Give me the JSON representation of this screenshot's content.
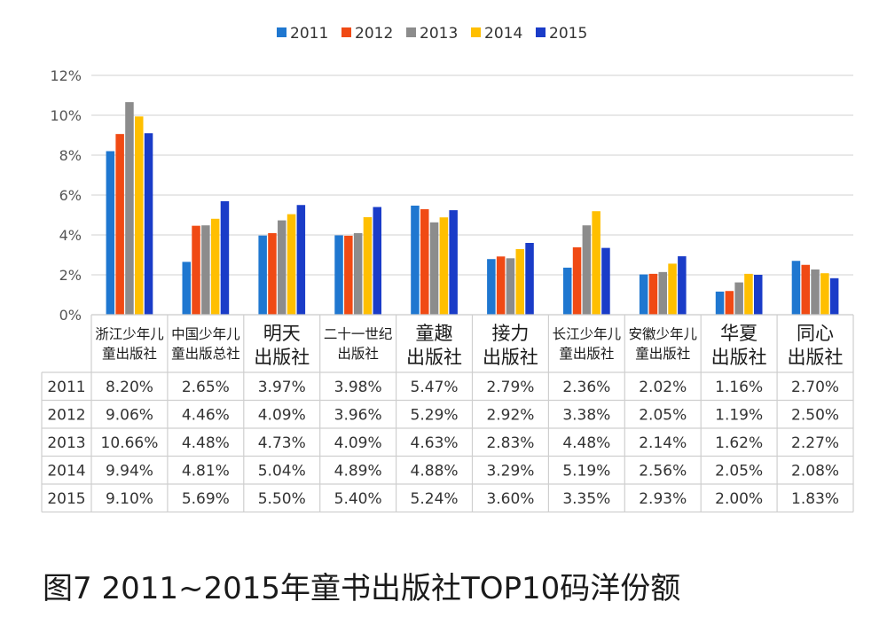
{
  "caption": "图7  2011~2015年童书出版社TOP10码洋份额",
  "colors": {
    "2011": "#1f77d0",
    "2012": "#f04a14",
    "2013": "#8c8c8c",
    "2014": "#ffbf00",
    "2015": "#1a3cc8"
  },
  "chart_data": {
    "type": "bar",
    "categories": [
      [
        "浙江少年儿",
        "童出版社"
      ],
      [
        "中国少年儿",
        "童出版总社"
      ],
      [
        "明天",
        "出版社"
      ],
      [
        "二十一世纪",
        "出版社"
      ],
      [
        "童趣",
        "出版社"
      ],
      [
        "接力",
        "出版社"
      ],
      [
        "长江少年儿",
        "童出版社"
      ],
      [
        "安徽少年儿",
        "童出版社"
      ],
      [
        "华夏",
        "出版社"
      ],
      [
        "同心",
        "出版社"
      ]
    ],
    "series": [
      {
        "name": "2011",
        "values": [
          8.2,
          2.65,
          3.97,
          3.98,
          5.47,
          2.79,
          2.36,
          2.02,
          1.16,
          2.7
        ],
        "labels": [
          "8.20%",
          "2.65%",
          "3.97%",
          "3.98%",
          "5.47%",
          "2.79%",
          "2.36%",
          "2.02%",
          "1.16%",
          "2.70%"
        ]
      },
      {
        "name": "2012",
        "values": [
          9.06,
          4.46,
          4.09,
          3.96,
          5.29,
          2.92,
          3.38,
          2.05,
          1.19,
          2.5
        ],
        "labels": [
          "9.06%",
          "4.46%",
          "4.09%",
          "3.96%",
          "5.29%",
          "2.92%",
          "3.38%",
          "2.05%",
          "1.19%",
          "2.50%"
        ]
      },
      {
        "name": "2013",
        "values": [
          10.66,
          4.48,
          4.73,
          4.09,
          4.63,
          2.83,
          4.48,
          2.14,
          1.62,
          2.27
        ],
        "labels": [
          "10.66%",
          "4.48%",
          "4.73%",
          "4.09%",
          "4.63%",
          "2.83%",
          "4.48%",
          "2.14%",
          "1.62%",
          "2.27%"
        ]
      },
      {
        "name": "2014",
        "values": [
          9.94,
          4.81,
          5.04,
          4.89,
          4.88,
          3.29,
          5.19,
          2.56,
          2.05,
          2.08
        ],
        "labels": [
          "9.94%",
          "4.81%",
          "5.04%",
          "4.89%",
          "4.88%",
          "3.29%",
          "5.19%",
          "2.56%",
          "2.05%",
          "2.08%"
        ]
      },
      {
        "name": "2015",
        "values": [
          9.1,
          5.69,
          5.5,
          5.4,
          5.24,
          3.6,
          3.35,
          2.93,
          2.0,
          1.83
        ],
        "labels": [
          "9.10%",
          "5.69%",
          "5.50%",
          "5.40%",
          "5.24%",
          "3.60%",
          "3.35%",
          "2.93%",
          "2.00%",
          "1.83%"
        ]
      }
    ],
    "yticks": [
      "0%",
      "2%",
      "4%",
      "6%",
      "8%",
      "10%",
      "12%"
    ],
    "ylim": [
      0,
      12
    ],
    "grid": true,
    "legend": "top-center",
    "data_table": true
  }
}
